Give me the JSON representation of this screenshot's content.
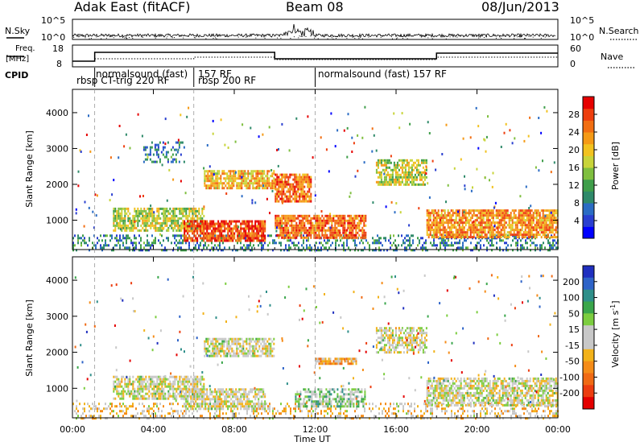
{
  "header": {
    "station": "Adak East (fitACF)",
    "beam": "Beam 08",
    "date": "08/Jun/2013"
  },
  "panel_labels": {
    "nsky": "N.Sky",
    "nsky_ticks": [
      "10^5",
      "10^0"
    ],
    "nsearch": "N.Search",
    "freq_line1": "Freq.",
    "freq_line2": "[MHz]",
    "freq_ticks": [
      "18",
      "8"
    ],
    "nave": "Nave",
    "nave_ticks": [
      "60",
      "0"
    ],
    "cpid": "CPID"
  },
  "cpid_segments": [
    {
      "label": "rbsp CT-trig 220 RF",
      "start_hour": 0.0
    },
    {
      "label": "normalsound (fast)",
      "start_hour": 1.1
    },
    {
      "label": "157 RF",
      "start_hour": 6.0
    },
    {
      "label": "rbsp 200 RF",
      "start_hour": 6.0
    },
    {
      "label": "normalsound (fast) 157 RF",
      "start_hour": 12.0
    }
  ],
  "time_axis": {
    "label": "Time UT",
    "ticks": [
      "00:00",
      "04:00",
      "08:00",
      "12:00",
      "16:00",
      "20:00",
      "00:00"
    ]
  },
  "range_axis": {
    "label": "Slant Range [km]",
    "ticks": [
      "1000",
      "2000",
      "3000",
      "4000"
    ]
  },
  "colorbars": {
    "power": {
      "label": "Power [dB]",
      "ticks": [
        "4",
        "8",
        "12",
        "16",
        "20",
        "24",
        "28"
      ],
      "colors": [
        "#0000ff",
        "#2a3fd0",
        "#2b6cc4",
        "#2f8a6a",
        "#3f9e4a",
        "#7fbf3f",
        "#c8d43a",
        "#f2c21f",
        "#f59a16",
        "#f26e12",
        "#ee3e0e",
        "#e60000"
      ]
    },
    "velocity": {
      "label": "Velocity [m s-1]",
      "label_main": "Velocity [m s",
      "label_sup": "-1",
      "label_end": "]",
      "ticks": [
        "200",
        "100",
        "50",
        "15",
        "-15",
        "-50",
        "-100",
        "-200"
      ],
      "colors": [
        "#1f2fbf",
        "#2e63c8",
        "#2f8f8a",
        "#3aa64b",
        "#7ccd3f",
        "#c8c8c8",
        "#c8c8c8",
        "#f2b21a",
        "#f58c18",
        "#f06a14",
        "#ec3d10",
        "#e40000"
      ]
    }
  },
  "chart_data": [
    {
      "type": "heatmap",
      "title": "Power",
      "xlabel": "Time UT",
      "ylabel": "Slant Range [km]",
      "x_range_hours": [
        0,
        24
      ],
      "y_range_km": [
        180,
        4650
      ],
      "value_label": "Power [dB]",
      "value_range": [
        0,
        30
      ],
      "echo_regions": [
        {
          "t0": 0.0,
          "t1": 24.0,
          "r0": 180,
          "r1": 600,
          "value": 8,
          "density": 0.35
        },
        {
          "t0": 2.0,
          "t1": 6.5,
          "r0": 700,
          "r1": 1350,
          "value": 16,
          "density": 0.7
        },
        {
          "t0": 5.5,
          "t1": 9.5,
          "r0": 400,
          "r1": 1000,
          "value": 26,
          "density": 0.8
        },
        {
          "t0": 6.5,
          "t1": 10.0,
          "r0": 1900,
          "r1": 2400,
          "value": 20,
          "density": 0.8
        },
        {
          "t0": 10.0,
          "t1": 11.8,
          "r0": 1500,
          "r1": 2300,
          "value": 24,
          "density": 0.75
        },
        {
          "t0": 10.0,
          "t1": 14.5,
          "r0": 500,
          "r1": 1150,
          "value": 24,
          "density": 0.8
        },
        {
          "t0": 15.0,
          "t1": 17.5,
          "r0": 2000,
          "r1": 2700,
          "value": 16,
          "density": 0.7
        },
        {
          "t0": 17.5,
          "t1": 24.0,
          "r0": 500,
          "r1": 1300,
          "value": 22,
          "density": 0.8
        },
        {
          "t0": 3.5,
          "t1": 5.5,
          "r0": 2600,
          "r1": 3200,
          "value": 8,
          "density": 0.35
        }
      ]
    },
    {
      "type": "heatmap",
      "title": "Velocity",
      "xlabel": "Time UT",
      "ylabel": "Slant Range [km]",
      "x_range_hours": [
        0,
        24
      ],
      "y_range_km": [
        180,
        4650
      ],
      "value_label": "Velocity [m s-1]",
      "value_range": [
        -200,
        200
      ],
      "echo_regions": [
        {
          "t0": 0.0,
          "t1": 24.0,
          "r0": 180,
          "r1": 600,
          "value": -30,
          "density": 0.3
        },
        {
          "t0": 2.0,
          "t1": 6.5,
          "r0": 700,
          "r1": 1350,
          "value": 0,
          "density": 0.7
        },
        {
          "t0": 5.5,
          "t1": 9.5,
          "r0": 400,
          "r1": 1000,
          "value": 0,
          "density": 0.7
        },
        {
          "t0": 6.5,
          "t1": 10.0,
          "r0": 1900,
          "r1": 2400,
          "value": 0,
          "density": 0.7
        },
        {
          "t0": 12.0,
          "t1": 14.0,
          "r0": 1650,
          "r1": 1850,
          "value": -60,
          "density": 0.8
        },
        {
          "t0": 11.0,
          "t1": 14.5,
          "r0": 500,
          "r1": 1000,
          "value": 40,
          "density": 0.6
        },
        {
          "t0": 15.0,
          "t1": 17.5,
          "r0": 2000,
          "r1": 2700,
          "value": 0,
          "density": 0.6
        },
        {
          "t0": 17.5,
          "t1": 24.0,
          "r0": 500,
          "r1": 1300,
          "value": 0,
          "density": 0.7
        }
      ]
    }
  ]
}
